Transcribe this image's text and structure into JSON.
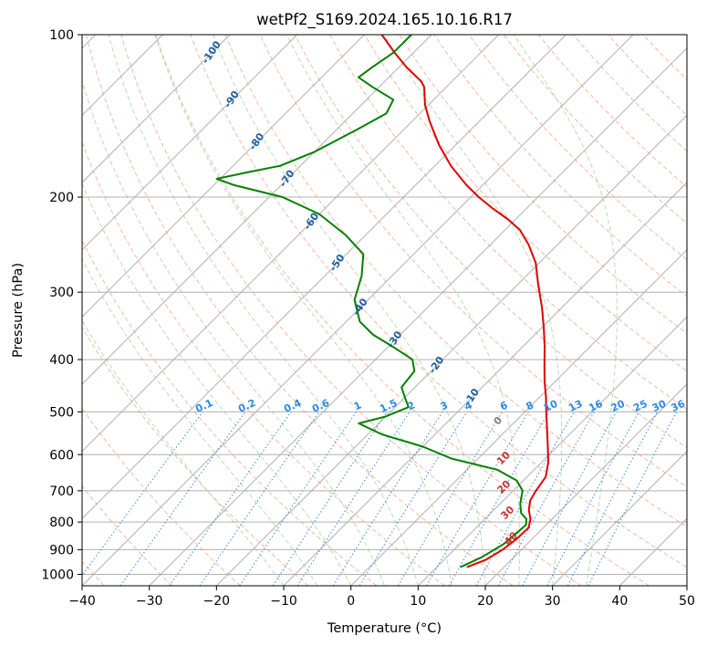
{
  "chart_data": {
    "type": "skew-t",
    "title": "wetPf2_S169.2024.165.10.16.R17",
    "xlabel": "Temperature (°C)",
    "ylabel": "Pressure (hPa)",
    "xlim": [
      -40,
      50
    ],
    "ylim_hpa": [
      1050,
      100
    ],
    "x_ticks": [
      -40,
      -30,
      -20,
      -10,
      0,
      10,
      20,
      30,
      40,
      50
    ],
    "x_tick_labels": [
      "−40",
      "−30",
      "−20",
      "−10",
      "0",
      "10",
      "20",
      "30",
      "40",
      "50"
    ],
    "y_ticks": [
      100,
      200,
      300,
      400,
      500,
      600,
      700,
      800,
      900,
      1000
    ],
    "grid": true,
    "isotherms_c": [
      -130,
      -120,
      -110,
      -100,
      -90,
      -80,
      -70,
      -60,
      -50,
      -40,
      -30,
      -20,
      -10,
      0,
      10,
      20,
      30,
      40,
      50
    ],
    "dry_adiabats_c": [
      -40,
      -30,
      -20,
      -10,
      0,
      10,
      20,
      30,
      40,
      50,
      60,
      70,
      80,
      90,
      100,
      110,
      120,
      130,
      140,
      150,
      160,
      170,
      180
    ],
    "dry_adiabat_labels": [
      "-100",
      "-90",
      "-80",
      "-70",
      "-60",
      "-50",
      "-40",
      "-30",
      "-20",
      "-10"
    ],
    "moist_adiabats_c": [
      -10,
      -5,
      0,
      5,
      10,
      15,
      20,
      25,
      30,
      35
    ],
    "moist_adiabat_labels": [
      "0",
      "10",
      "20",
      "30",
      "40"
    ],
    "mixing_ratios_gkg": [
      0.1,
      0.2,
      0.4,
      0.6,
      1,
      1.5,
      2,
      3,
      4,
      6,
      8,
      10,
      13,
      16,
      20,
      25,
      30,
      36
    ],
    "mixing_ratio_labels": [
      "0.1",
      "0.2",
      "0.4",
      "0.6",
      "1",
      "1.5",
      "2",
      "3",
      "4",
      "6",
      "8",
      "10",
      "13",
      "16",
      "20",
      "25",
      "30",
      "36"
    ],
    "series": [
      {
        "name": "temperature",
        "color": "#e00000",
        "points": [
          [
            970,
            14.5
          ],
          [
            940,
            16.2
          ],
          [
            900,
            17.2
          ],
          [
            860,
            17.7
          ],
          [
            820,
            17.8
          ],
          [
            790,
            16.8
          ],
          [
            760,
            15.2
          ],
          [
            730,
            14.0
          ],
          [
            700,
            13.4
          ],
          [
            660,
            12.8
          ],
          [
            620,
            11.0
          ],
          [
            580,
            8.6
          ],
          [
            540,
            6.0
          ],
          [
            500,
            3.2
          ],
          [
            470,
            1.0
          ],
          [
            440,
            -1.5
          ],
          [
            410,
            -4.0
          ],
          [
            380,
            -6.6
          ],
          [
            350,
            -9.6
          ],
          [
            320,
            -13.0
          ],
          [
            290,
            -17.0
          ],
          [
            265,
            -20.5
          ],
          [
            245,
            -24.3
          ],
          [
            230,
            -27.8
          ],
          [
            220,
            -31.1
          ],
          [
            210,
            -35.0
          ],
          [
            200,
            -38.8
          ],
          [
            190,
            -42.4
          ],
          [
            175,
            -47.6
          ],
          [
            160,
            -52.5
          ],
          [
            145,
            -57.3
          ],
          [
            135,
            -60.5
          ],
          [
            125,
            -63.3
          ],
          [
            122,
            -64.6
          ],
          [
            115,
            -68.8
          ],
          [
            108,
            -72.8
          ],
          [
            100,
            -77.4
          ]
        ]
      },
      {
        "name": "dewpoint",
        "color": "#008000",
        "points": [
          [
            970,
            13.5
          ],
          [
            930,
            15.2
          ],
          [
            880,
            16.5
          ],
          [
            840,
            16.8
          ],
          [
            810,
            17.0
          ],
          [
            790,
            16.2
          ],
          [
            770,
            14.5
          ],
          [
            740,
            13.0
          ],
          [
            700,
            11.4
          ],
          [
            670,
            9.0
          ],
          [
            640,
            4.5
          ],
          [
            610,
            -4.0
          ],
          [
            580,
            -10.0
          ],
          [
            550,
            -18.0
          ],
          [
            525,
            -23.0
          ],
          [
            510,
            -20.0
          ],
          [
            490,
            -18.0
          ],
          [
            470,
            -20.0
          ],
          [
            450,
            -22.0
          ],
          [
            420,
            -22.5
          ],
          [
            400,
            -24.5
          ],
          [
            380,
            -29.0
          ],
          [
            360,
            -34.0
          ],
          [
            340,
            -38.0
          ],
          [
            310,
            -42.0
          ],
          [
            280,
            -44.5
          ],
          [
            255,
            -47.5
          ],
          [
            235,
            -53.0
          ],
          [
            215,
            -60.0
          ],
          [
            200,
            -68.0
          ],
          [
            190,
            -77.0
          ],
          [
            185,
            -80.5
          ],
          [
            180,
            -77.0
          ],
          [
            175,
            -73.0
          ],
          [
            165,
            -70.0
          ],
          [
            150,
            -67.0
          ],
          [
            140,
            -65.0
          ],
          [
            132,
            -66.0
          ],
          [
            125,
            -71.0
          ],
          [
            120,
            -74.5
          ],
          [
            115,
            -74.0
          ],
          [
            108,
            -73.0
          ],
          [
            100,
            -73.0
          ]
        ]
      }
    ]
  }
}
